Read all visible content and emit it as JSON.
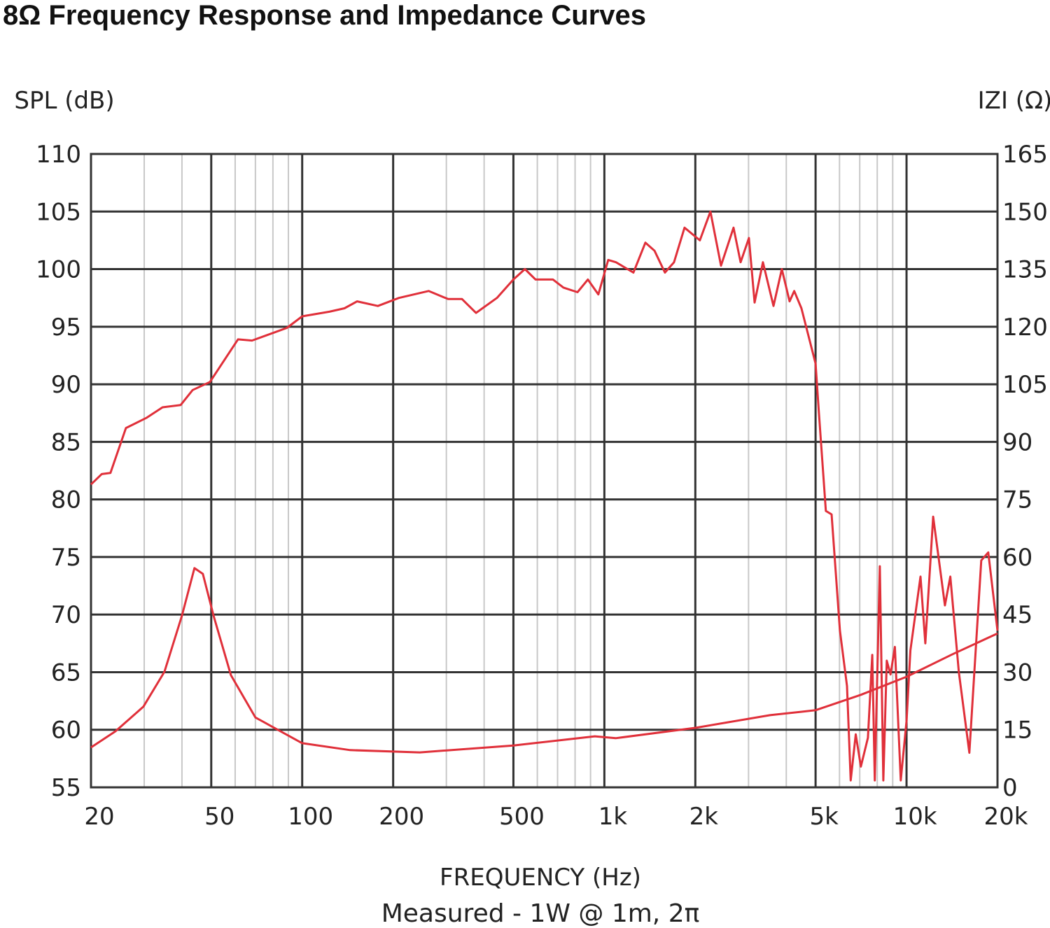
{
  "chart_data": {
    "type": "line",
    "title": "8Ω Frequency Response and Impedance Curves",
    "xlabel": "FREQUENCY (Hz)",
    "subtitle": "Measured - 1W @ 1m, 2π",
    "ylabel_left": "SPL (dB)",
    "ylabel_right": "IZI (Ω)",
    "x_scale": "log",
    "xlim": [
      20,
      20000
    ],
    "ylim_left": [
      55,
      110
    ],
    "ylim_right": [
      0,
      165
    ],
    "grid": true,
    "x_ticks": [
      20,
      50,
      100,
      200,
      500,
      1000,
      2000,
      5000,
      10000,
      20000
    ],
    "x_tick_labels": [
      "20",
      "50",
      "100",
      "200",
      "500",
      "1k",
      "2k",
      "5k",
      "10k",
      "20k"
    ],
    "x_minor_ticks": [
      30,
      40,
      60,
      70,
      80,
      90,
      300,
      400,
      600,
      700,
      800,
      900,
      3000,
      4000,
      6000,
      7000,
      8000,
      9000
    ],
    "y_left_ticks": [
      110,
      105,
      100,
      95,
      90,
      85,
      80,
      75,
      70,
      65,
      60,
      55
    ],
    "y_right_ticks": [
      165,
      150,
      135,
      120,
      105,
      90,
      75,
      60,
      45,
      30,
      15,
      0
    ],
    "line_color": "#e0303a",
    "series": [
      {
        "axis": "left",
        "points": [
          [
            20,
            81.3
          ],
          [
            21.7,
            82.2
          ],
          [
            23.2,
            82.3
          ],
          [
            26.1,
            86.2
          ],
          [
            30.6,
            87.1
          ],
          [
            34.5,
            88.0
          ],
          [
            39.6,
            88.2
          ],
          [
            43.4,
            89.5
          ],
          [
            49.5,
            90.2
          ],
          [
            61.3,
            93.9
          ],
          [
            68.2,
            93.8
          ],
          [
            89,
            94.9
          ],
          [
            100,
            95.9
          ],
          [
            123,
            96.3
          ],
          [
            138,
            96.6
          ],
          [
            152,
            97.2
          ],
          [
            178,
            96.8
          ],
          [
            209,
            97.5
          ],
          [
            262,
            98.1
          ],
          [
            304,
            97.4
          ],
          [
            338,
            97.4
          ],
          [
            376,
            96.2
          ],
          [
            441,
            97.5
          ],
          [
            500,
            99.1
          ],
          [
            546,
            100.0
          ],
          [
            592,
            99.1
          ],
          [
            676,
            99.1
          ],
          [
            732,
            98.4
          ],
          [
            815,
            98.0
          ],
          [
            882,
            99.1
          ],
          [
            955,
            97.8
          ],
          [
            1030,
            100.8
          ],
          [
            1092,
            100.6
          ],
          [
            1248,
            99.7
          ],
          [
            1367,
            102.3
          ],
          [
            1465,
            101.6
          ],
          [
            1586,
            99.7
          ],
          [
            1700,
            100.6
          ],
          [
            1842,
            103.6
          ],
          [
            2070,
            102.5
          ],
          [
            2244,
            105.0
          ],
          [
            2432,
            100.3
          ],
          [
            2676,
            103.6
          ],
          [
            2824,
            100.6
          ],
          [
            3009,
            102.7
          ],
          [
            3141,
            97.1
          ],
          [
            3348,
            100.6
          ],
          [
            3628,
            96.8
          ],
          [
            3866,
            100.0
          ],
          [
            4101,
            97.2
          ],
          [
            4250,
            98.1
          ],
          [
            4490,
            96.6
          ],
          [
            5000,
            91.8
          ],
          [
            5130,
            87.5
          ],
          [
            5408,
            79.0
          ],
          [
            5650,
            78.7
          ],
          [
            6020,
            68.6
          ],
          [
            6352,
            63.8
          ],
          [
            6535,
            55.6
          ],
          [
            6790,
            59.6
          ],
          [
            7060,
            56.8
          ],
          [
            7450,
            59.3
          ],
          [
            7700,
            66.5
          ],
          [
            7850,
            55.6
          ],
          [
            8160,
            74.2
          ],
          [
            8380,
            55.6
          ],
          [
            8600,
            66.0
          ],
          [
            8850,
            64.8
          ],
          [
            9150,
            67.2
          ],
          [
            9570,
            55.6
          ],
          [
            10000,
            60.8
          ],
          [
            10300,
            66.9
          ],
          [
            11120,
            73.3
          ],
          [
            11540,
            67.5
          ],
          [
            12250,
            78.5
          ],
          [
            13400,
            70.8
          ],
          [
            13960,
            73.3
          ],
          [
            14900,
            65.0
          ],
          [
            16140,
            58.0
          ],
          [
            17670,
            74.7
          ],
          [
            18640,
            75.4
          ],
          [
            20000,
            68.6
          ]
        ]
      },
      {
        "axis": "right",
        "points": [
          [
            20,
            10.4
          ],
          [
            24.1,
            14.6
          ],
          [
            29.8,
            21.0
          ],
          [
            35,
            30.1
          ],
          [
            40,
            44.7
          ],
          [
            44,
            57.1
          ],
          [
            46.9,
            55.6
          ],
          [
            50.9,
            44.7
          ],
          [
            58.1,
            29.2
          ],
          [
            70,
            18.2
          ],
          [
            100,
            11.5
          ],
          [
            144,
            9.7
          ],
          [
            245,
            9.1
          ],
          [
            500,
            10.9
          ],
          [
            930,
            13.3
          ],
          [
            1090,
            12.8
          ],
          [
            2000,
            15.5
          ],
          [
            3532,
            18.8
          ],
          [
            5000,
            20.1
          ],
          [
            7060,
            24.1
          ],
          [
            10000,
            28.8
          ],
          [
            14140,
            34.6
          ],
          [
            20000,
            40.1
          ]
        ]
      }
    ]
  }
}
